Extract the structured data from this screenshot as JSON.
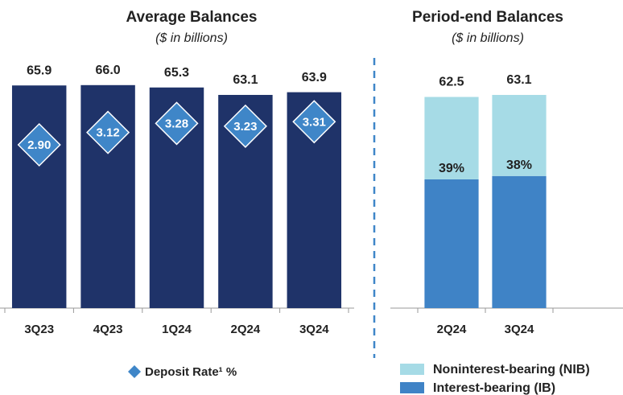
{
  "chart_data": [
    {
      "type": "bar",
      "title": "Average Balances",
      "subtitle": "($ in billions)",
      "categories": [
        "3Q23",
        "4Q23",
        "1Q24",
        "2Q24",
        "3Q24"
      ],
      "values": [
        65.9,
        66.0,
        65.3,
        63.1,
        63.9
      ],
      "value_labels": [
        "65.9",
        "66.0",
        "65.3",
        "63.1",
        "63.9"
      ],
      "color": "#1f3369",
      "ylim": [
        0,
        75
      ],
      "y2lim": [
        0,
        4.5
      ],
      "series": [
        {
          "name": "Deposit Rate¹ %",
          "color": "#3f86c8",
          "axis": "y2",
          "marker": "diamond",
          "values": [
            2.9,
            3.12,
            3.28,
            3.23,
            3.31
          ],
          "value_labels": [
            "2.90",
            "3.12",
            "3.28",
            "3.23",
            "3.31"
          ]
        }
      ]
    },
    {
      "type": "stacked_bar",
      "title": "Period-end Balances",
      "subtitle": "($ in billions)",
      "categories": [
        "2Q24",
        "3Q24"
      ],
      "ylim": [
        0,
        75
      ],
      "series": [
        {
          "name": "Interest-bearing (IB)",
          "color": "#3f83c6",
          "values": [
            38.1,
            39.1
          ]
        },
        {
          "name": "Noninterest-bearing (NIB)",
          "color": "#a6dbe6",
          "values": [
            24.4,
            24.0
          ]
        }
      ],
      "totals": [
        62.5,
        63.1
      ],
      "shares": [
        39,
        38
      ],
      "share_labels": [
        "39%",
        "38%"
      ]
    }
  ]
}
